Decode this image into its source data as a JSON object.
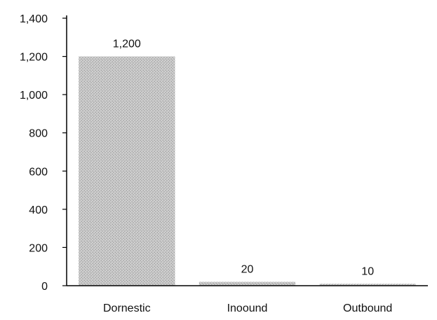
{
  "chart_data": {
    "type": "bar",
    "categories": [
      "Domestic",
      "Inbound",
      "Outbound"
    ],
    "category_labels_as_printed": [
      "Dornestic",
      "Inoound",
      "Outbound"
    ],
    "values": [
      1200,
      20,
      10
    ],
    "data_labels": [
      "1,200",
      "20",
      "10"
    ],
    "ylim": [
      0,
      1400
    ],
    "yticks": [
      0,
      200,
      400,
      600,
      800,
      1000,
      1200,
      1400
    ],
    "ytick_labels": [
      "0",
      "200",
      "400",
      "600",
      "800",
      "1,000",
      "1,200",
      "1,400"
    ],
    "grid": false,
    "legend": "none",
    "bar_color": "#c4c4c4",
    "axis_color": "#000000"
  }
}
